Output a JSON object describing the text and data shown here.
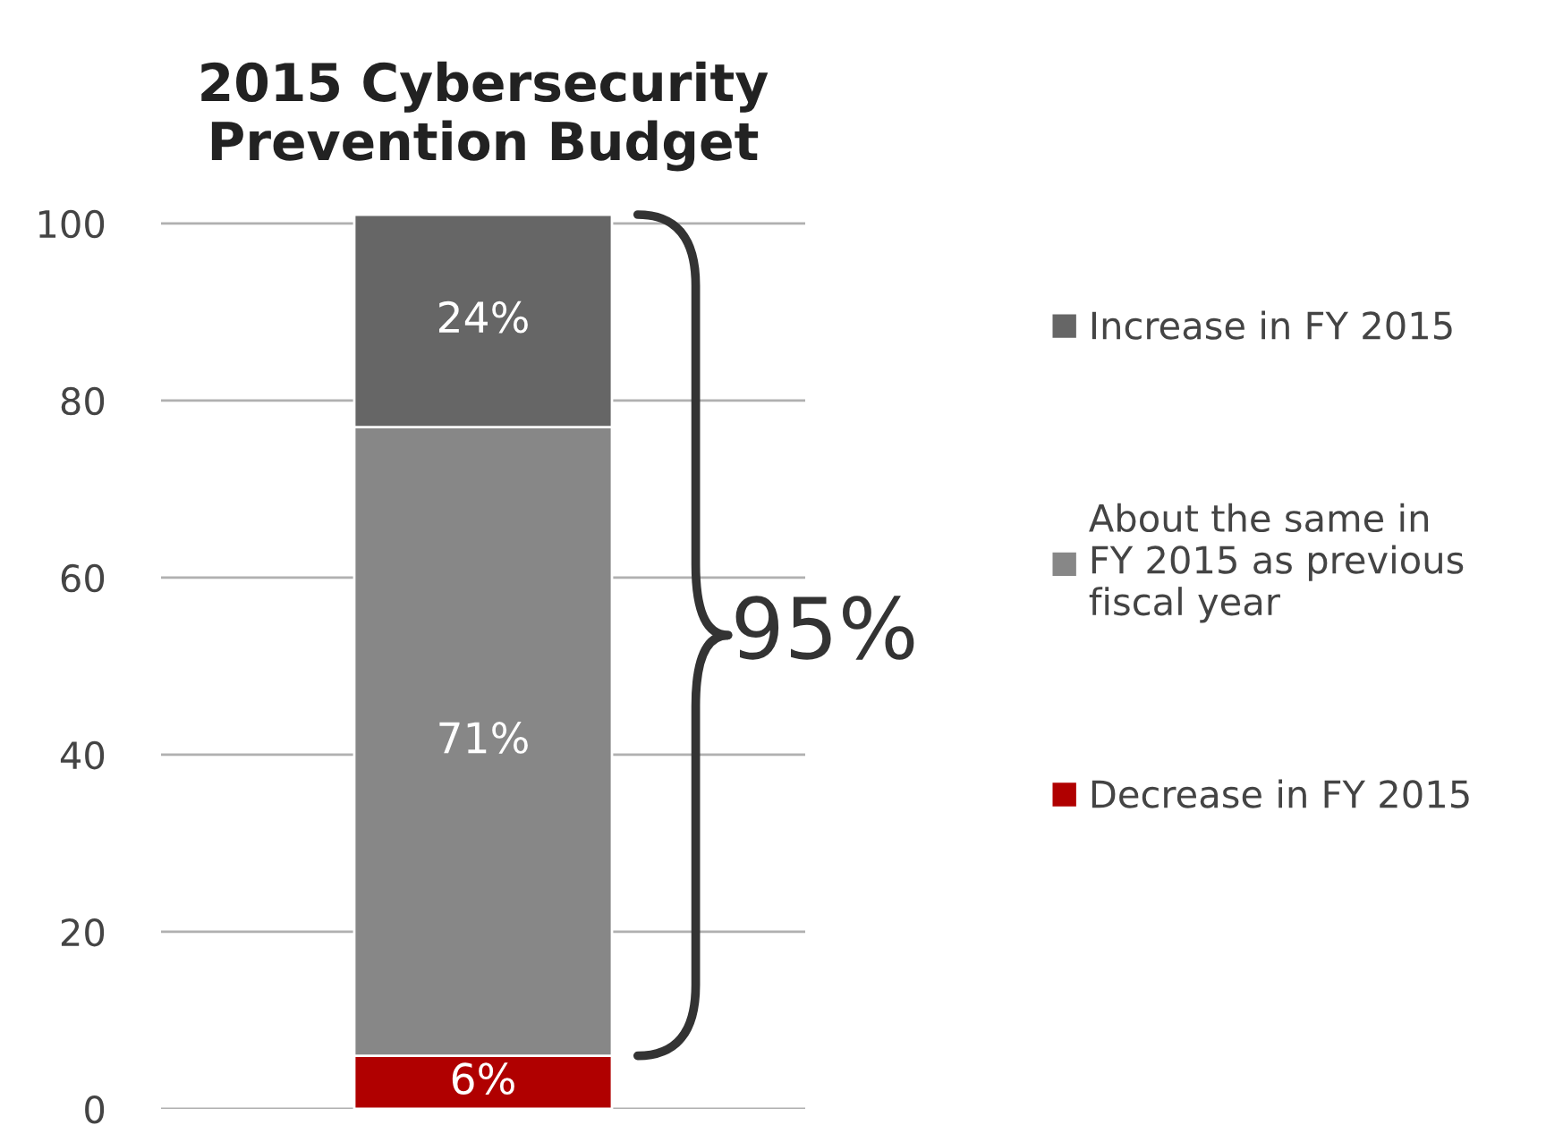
{
  "chart_data": {
    "type": "bar",
    "title": "2015 Cybersecurity\nPrevention Budget",
    "categories": [
      null
    ],
    "stacked": true,
    "series": [
      {
        "name": "Decrease in FY 2015",
        "color": "#b00000",
        "values": [
          6
        ],
        "value_labels": [
          "6%"
        ]
      },
      {
        "name": "About the same in\nFY 2015 as previous\nfiscal year",
        "color": "#878787",
        "values": [
          71
        ],
        "value_labels": [
          "71%"
        ]
      },
      {
        "name": "Increase in FY 2015",
        "color": "#666666",
        "values": [
          24
        ],
        "value_labels": [
          "24%"
        ]
      }
    ],
    "ylim": [
      0,
      101
    ],
    "yticks": [
      0,
      20,
      40,
      60,
      80,
      100
    ],
    "grid": "y",
    "legend": "right",
    "annotations": [
      "95%"
    ]
  }
}
